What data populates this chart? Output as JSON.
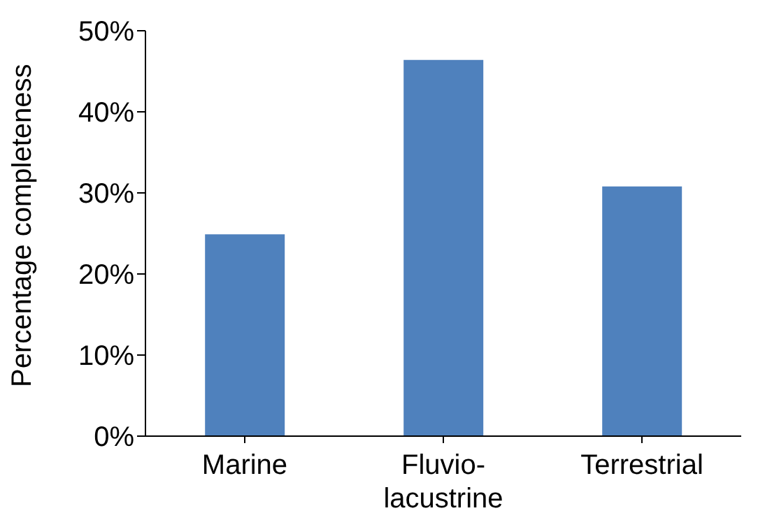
{
  "chart_data": {
    "type": "bar",
    "ylabel": "Percentage completeness",
    "categories": [
      "Marine",
      "Fluvio-lacustrine",
      "Terrestrial"
    ],
    "values": [
      24.9,
      46.4,
      30.8
    ],
    "color": "#4f81bd",
    "ylim": [
      0,
      50
    ],
    "yticks": [
      {
        "value": 0,
        "label": "0%"
      },
      {
        "value": 10,
        "label": "10%"
      },
      {
        "value": 20,
        "label": "20%"
      },
      {
        "value": 30,
        "label": "30%"
      },
      {
        "value": 40,
        "label": "40%"
      },
      {
        "value": 50,
        "label": "50%"
      }
    ],
    "grid": false,
    "legend": false
  }
}
